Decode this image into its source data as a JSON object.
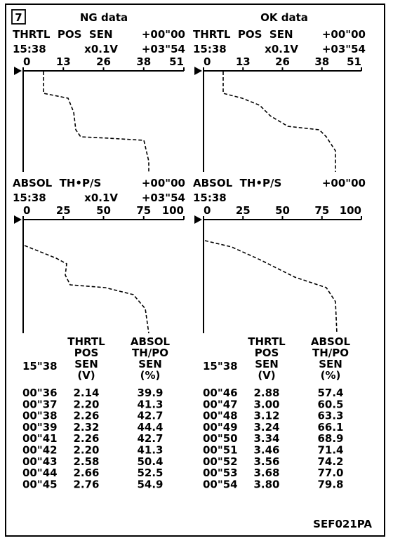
{
  "figure_number": "7",
  "panels": [
    {
      "heading": "NG data",
      "graphs": [
        {
          "label": "THRTL  POS  SEN",
          "offset_start": "+00\"00",
          "time": "15:38",
          "unit": "x0.1V",
          "offset_end": "+03\"54",
          "ticks": [
            "0",
            "13",
            "26",
            "38",
            "51"
          ]
        },
        {
          "label": "ABSOL  TH•P/S",
          "offset_start": "+00\"00",
          "time": "15:38",
          "unit": "x0.1V",
          "offset_end": "+03\"54",
          "ticks": [
            "0",
            "25",
            "50",
            "75",
            "100"
          ]
        }
      ],
      "table": {
        "time_header": "15\"38",
        "col1_header": [
          "THRTL",
          "POS",
          "SEN",
          "(V)"
        ],
        "col2_header": [
          "ABSOL",
          "TH/PO",
          "SEN",
          "(%)"
        ],
        "rows": [
          [
            "00\"36",
            "2.14",
            "39.9"
          ],
          [
            "00\"37",
            "2.20",
            "41.3"
          ],
          [
            "00\"38",
            "2.26",
            "42.7"
          ],
          [
            "00\"39",
            "2.32",
            "44.4"
          ],
          [
            "00\"41",
            "2.26",
            "42.7"
          ],
          [
            "00\"42",
            "2.20",
            "41.3"
          ],
          [
            "00\"43",
            "2.58",
            "50.4"
          ],
          [
            "00\"44",
            "2.66",
            "52.5"
          ],
          [
            "00\"45",
            "2.76",
            "54.9"
          ]
        ]
      }
    },
    {
      "heading": "OK data",
      "graphs": [
        {
          "label": "THRTL  POS  SEN",
          "offset_start": "+00\"00",
          "time": "15:38",
          "unit": "x0.1V",
          "offset_end": "+03\"54",
          "ticks": [
            "0",
            "13",
            "26",
            "38",
            "51"
          ]
        },
        {
          "label": "ABSOL  TH•P/S",
          "offset_start": "+00\"00",
          "time": "15:38",
          "ticks": [
            "0",
            "25",
            "50",
            "75",
            "100"
          ]
        }
      ],
      "table": {
        "time_header": "15\"38",
        "col1_header": [
          "THRTL",
          "POS",
          "SEN",
          "(V)"
        ],
        "col2_header": [
          "ABSOL",
          "TH/PO",
          "SEN",
          "(%)"
        ],
        "rows": [
          [
            "00\"46",
            "2.88",
            "57.4"
          ],
          [
            "00\"47",
            "3.00",
            "60.5"
          ],
          [
            "00\"48",
            "3.12",
            "63.3"
          ],
          [
            "00\"49",
            "3.24",
            "66.1"
          ],
          [
            "00\"50",
            "3.34",
            "68.9"
          ],
          [
            "00\"51",
            "3.46",
            "71.4"
          ],
          [
            "00\"52",
            "3.56",
            "74.2"
          ],
          [
            "00\"53",
            "3.68",
            "77.0"
          ],
          [
            "00\"54",
            "3.80",
            "79.8"
          ]
        ]
      }
    }
  ],
  "code": "SEF021PA"
}
